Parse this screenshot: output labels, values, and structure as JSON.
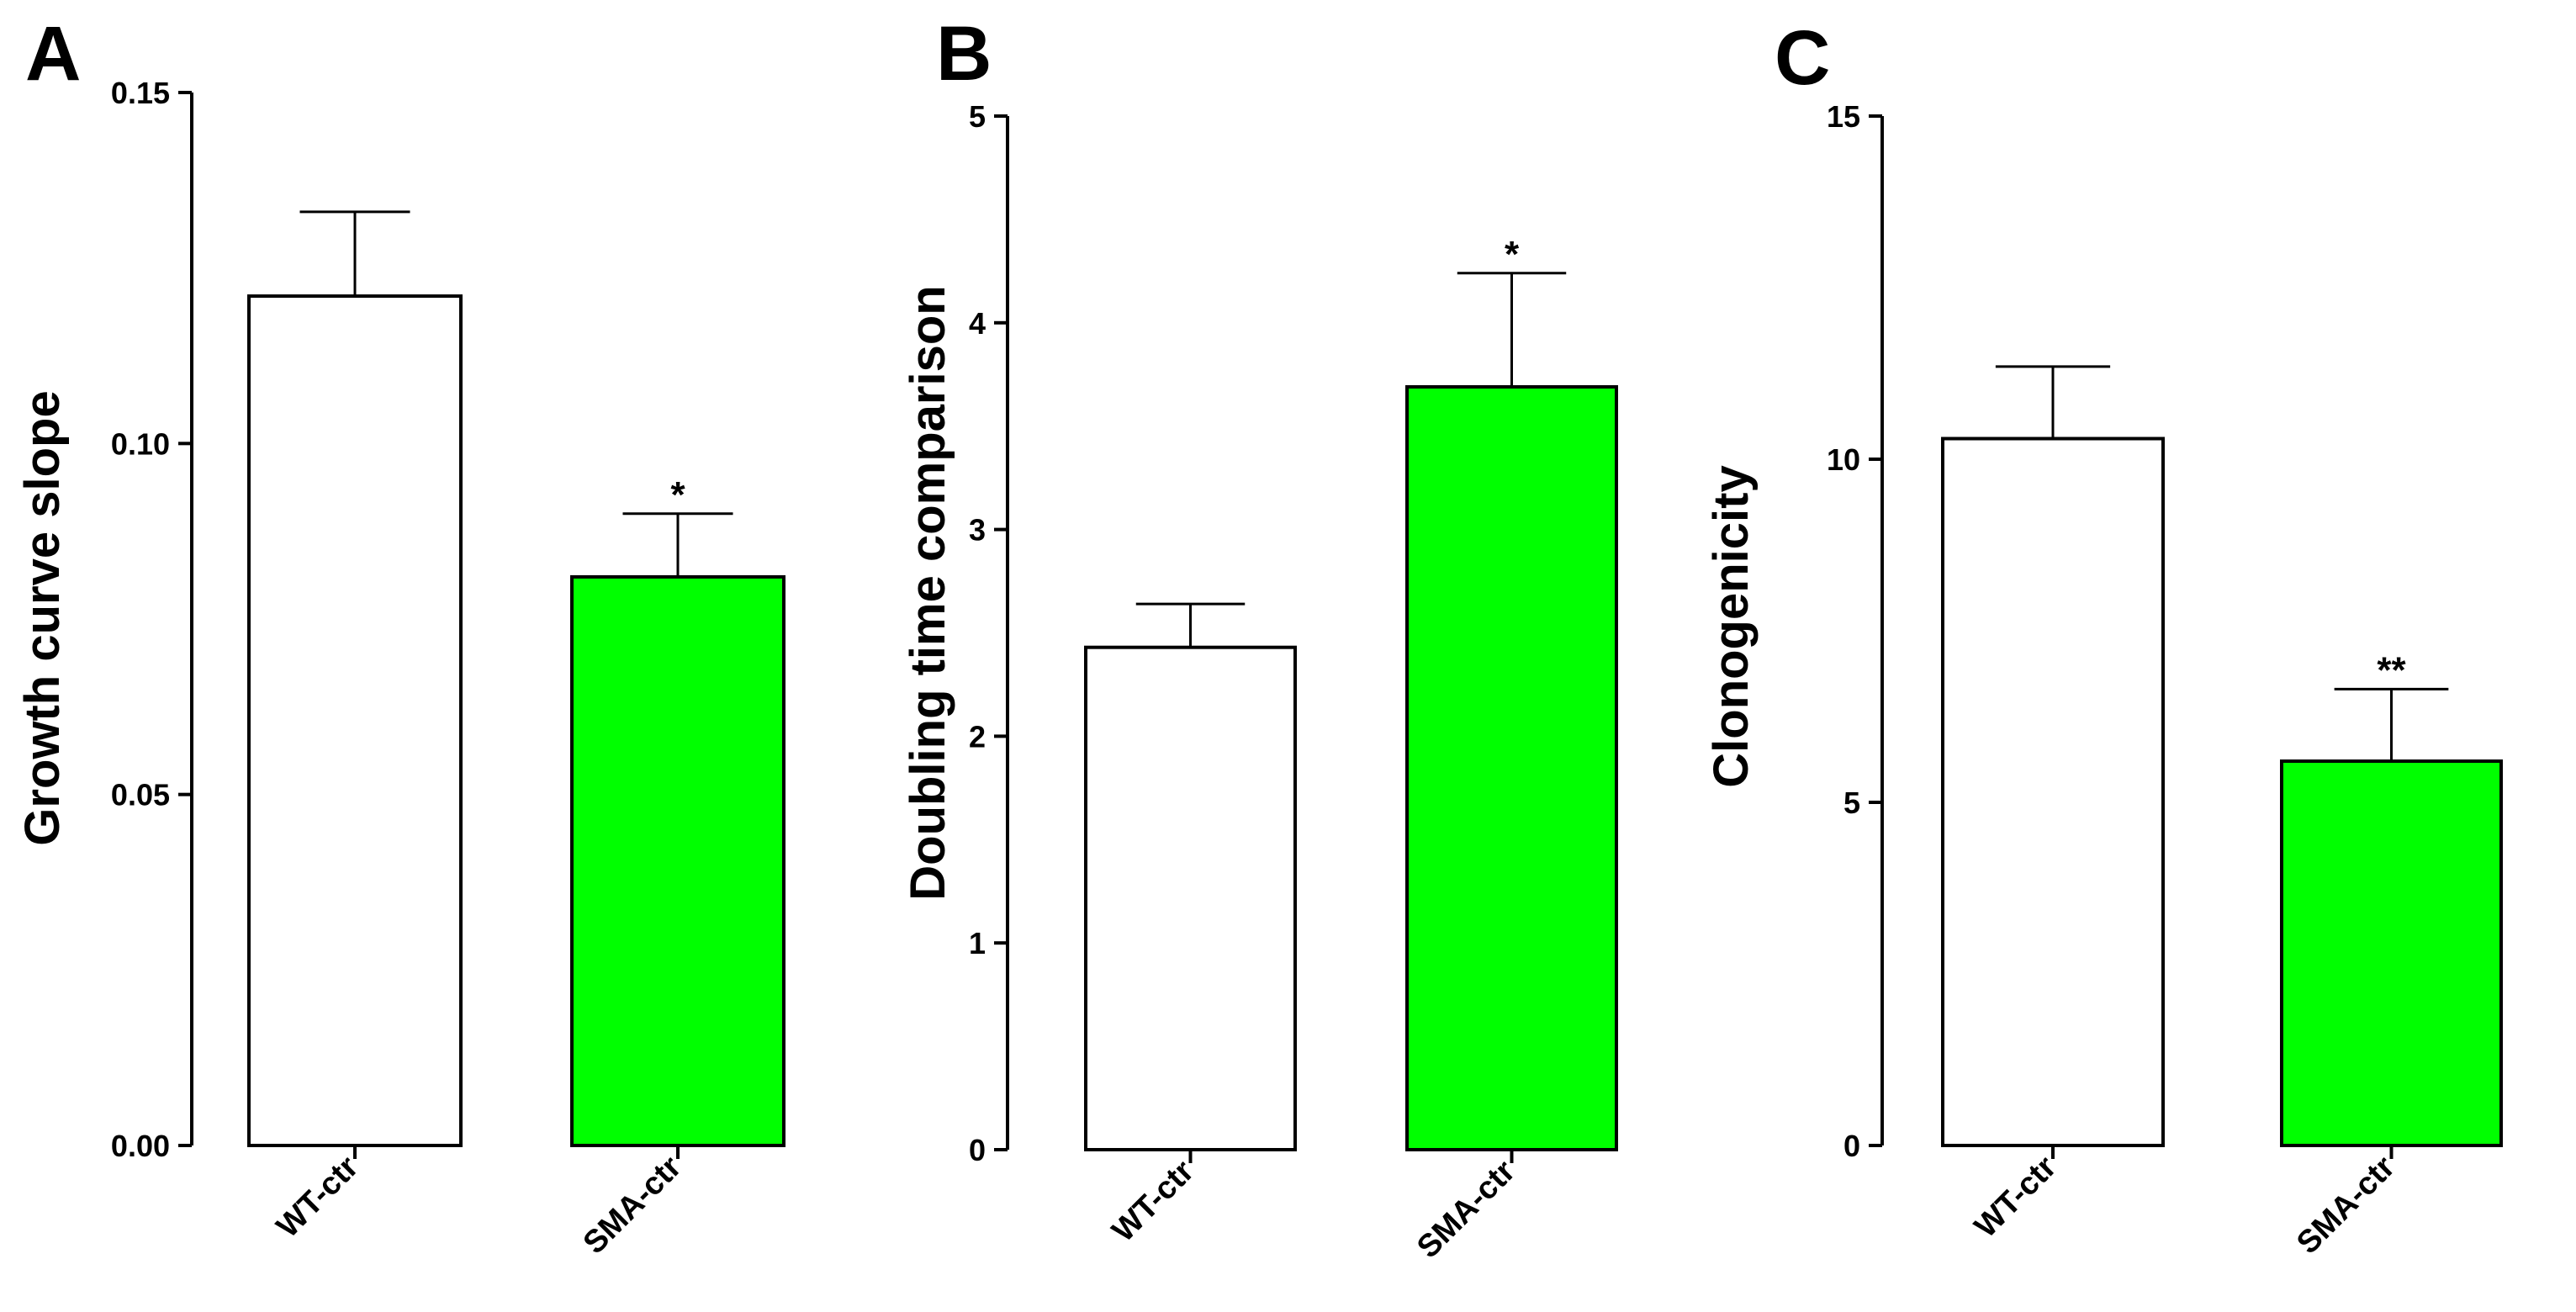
{
  "chart_data": [
    {
      "type": "bar",
      "panel_label": "A",
      "title": "",
      "ylabel": "Growth curve slope",
      "xlabel": "",
      "ylim": [
        0,
        0.15
      ],
      "yticks": [
        "0.00",
        "0.05",
        "0.10",
        "0.15"
      ],
      "ytick_values": [
        0,
        0.05,
        0.1,
        0.15
      ],
      "categories": [
        "WT-ctr",
        "SMA-ctr"
      ],
      "values": [
        0.121,
        0.081
      ],
      "errors": [
        0.012,
        0.009
      ],
      "colors": [
        "#ffffff",
        "#00ff00"
      ],
      "significance": [
        "",
        "*"
      ]
    },
    {
      "type": "bar",
      "panel_label": "B",
      "title": "",
      "ylabel": "Doubling time comparison",
      "xlabel": "",
      "ylim": [
        0,
        5
      ],
      "yticks": [
        "0",
        "1",
        "2",
        "3",
        "4",
        "5"
      ],
      "ytick_values": [
        0,
        1,
        2,
        3,
        4,
        5
      ],
      "categories": [
        "WT-ctr",
        "SMA-ctr"
      ],
      "values": [
        2.43,
        3.69
      ],
      "errors": [
        0.21,
        0.55
      ],
      "colors": [
        "#ffffff",
        "#00ff00"
      ],
      "significance": [
        "",
        "*"
      ]
    },
    {
      "type": "bar",
      "panel_label": "C",
      "title": "",
      "ylabel": "Clonogenicity",
      "xlabel": "",
      "ylim": [
        0,
        15
      ],
      "yticks": [
        "0",
        "5",
        "10",
        "15"
      ],
      "ytick_values": [
        0,
        5,
        10,
        15
      ],
      "categories": [
        "WT-ctr",
        "SMA-ctr"
      ],
      "values": [
        10.3,
        5.6
      ],
      "errors": [
        1.05,
        1.05
      ],
      "colors": [
        "#ffffff",
        "#00ff00"
      ],
      "significance": [
        "",
        "**"
      ]
    }
  ]
}
